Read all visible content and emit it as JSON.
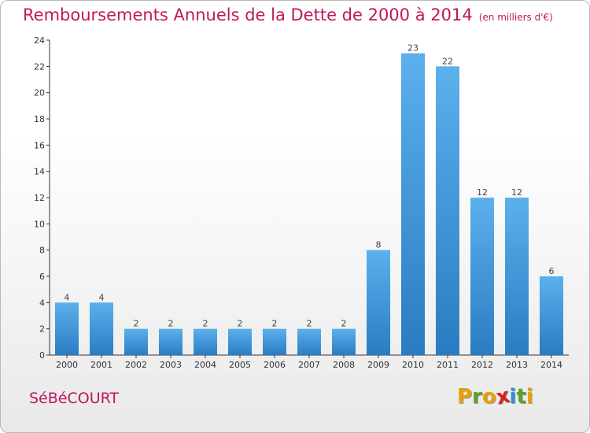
{
  "title": {
    "main": "Remboursements Annuels de la Dette de 2000 à 2014",
    "unit": "(en milliers d'€)"
  },
  "commune": "SéBéCOURT",
  "logo": {
    "letters": [
      "P",
      "r",
      "o",
      "x",
      "i",
      "t",
      "i"
    ],
    "colors": [
      "#e8a100",
      "#5aa02c",
      "#e8a100",
      "#d0231f",
      "#2f8fd8",
      "#5aa02c",
      "#e8a100"
    ]
  },
  "colors": {
    "bar": "#4a9fe0",
    "bar_dark": "#2f7fc4",
    "accent": "#c0165f"
  },
  "chart_data": {
    "type": "bar",
    "title": "Remboursements Annuels de la Dette de 2000 à 2014",
    "xlabel": "",
    "ylabel": "",
    "categories": [
      "2000",
      "2001",
      "2002",
      "2003",
      "2004",
      "2005",
      "2006",
      "2007",
      "2008",
      "2009",
      "2010",
      "2011",
      "2012",
      "2013",
      "2014"
    ],
    "values": [
      4,
      4,
      2,
      2,
      2,
      2,
      2,
      2,
      2,
      8,
      23,
      22,
      12,
      12,
      6
    ],
    "ylim": [
      0,
      24
    ],
    "yticks": [
      0,
      2,
      4,
      6,
      8,
      10,
      12,
      14,
      16,
      18,
      20,
      22,
      24
    ],
    "grid": false,
    "legend": "none"
  }
}
